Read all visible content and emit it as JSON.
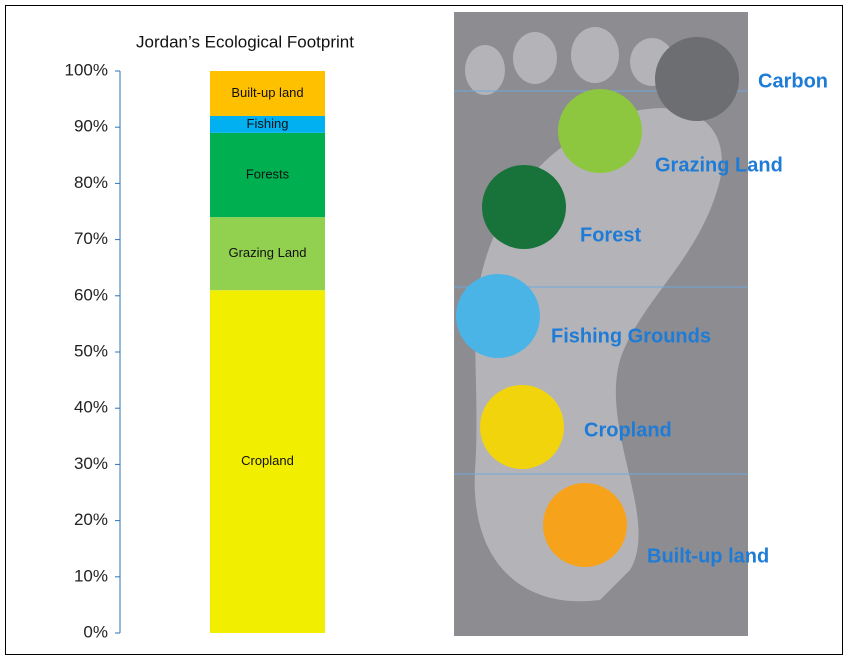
{
  "chart_data": {
    "type": "stacked-bar",
    "title": "Jordan’s Ecological Footprint",
    "categories": [
      null
    ],
    "series": [
      {
        "name": "Cropland",
        "color": "#f2ee00",
        "values": [
          61
        ]
      },
      {
        "name": "Grazing Land",
        "color": "#92d050",
        "values": [
          13
        ]
      },
      {
        "name": "Forests",
        "color": "#00b050",
        "values": [
          15
        ]
      },
      {
        "name": "Fishing",
        "color": "#00b0f0",
        "values": [
          3
        ]
      },
      {
        "name": "Built-up land",
        "color": "#ffc000",
        "values": [
          8
        ]
      }
    ],
    "ylim": [
      0,
      100
    ],
    "yticks": [
      {
        "value": 0,
        "label": "0%"
      },
      {
        "value": 10,
        "label": "10%"
      },
      {
        "value": 20,
        "label": "20%"
      },
      {
        "value": 30,
        "label": "30%"
      },
      {
        "value": 40,
        "label": "40%"
      },
      {
        "value": 50,
        "label": "50%"
      },
      {
        "value": 60,
        "label": "60%"
      },
      {
        "value": 70,
        "label": "70%"
      },
      {
        "value": 80,
        "label": "80%"
      },
      {
        "value": 90,
        "label": "90%"
      },
      {
        "value": 100,
        "label": "100%"
      }
    ],
    "grid": false
  },
  "infographic": {
    "items": [
      "Carbon",
      "Grazing Land",
      "Forest",
      "Fishing Grounds",
      "Cropland",
      "Built-up land"
    ]
  }
}
